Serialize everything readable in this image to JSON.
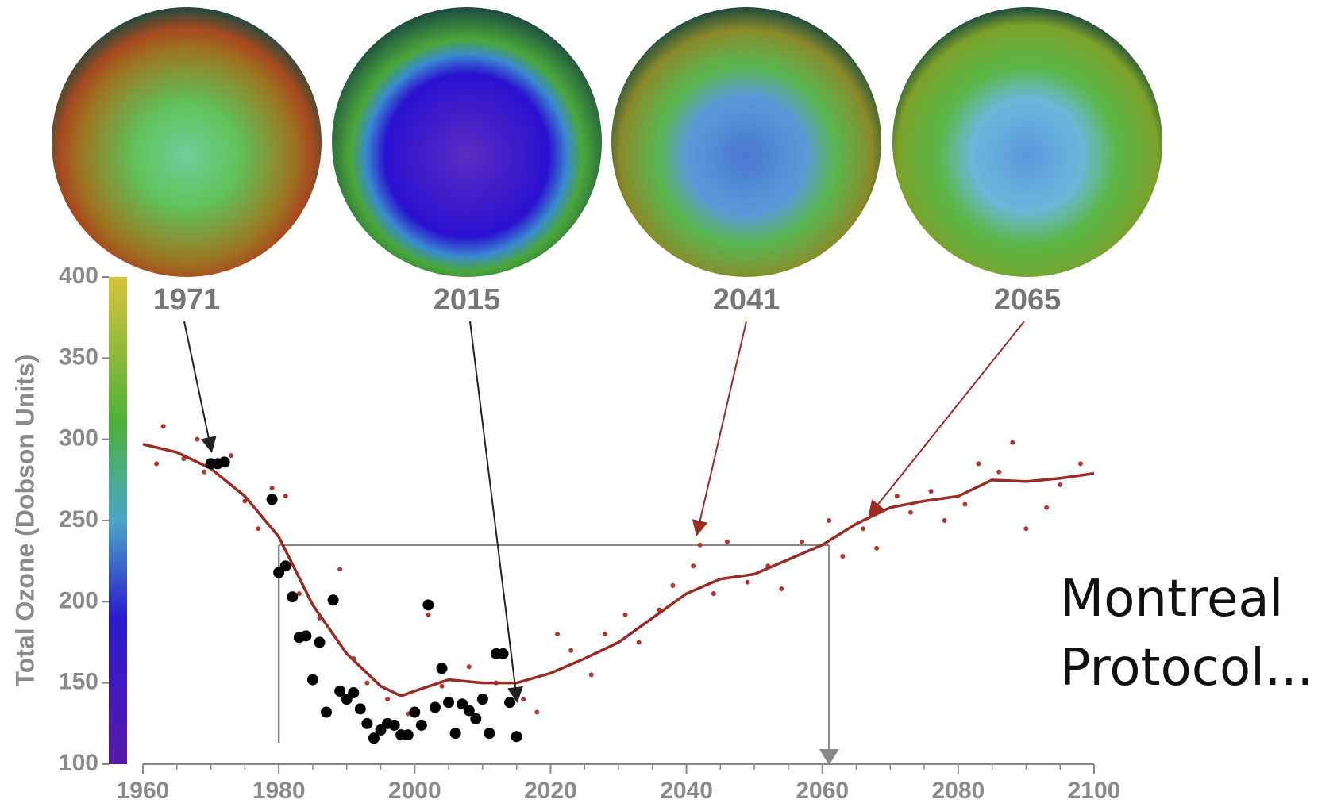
{
  "chart_data": {
    "type": "scatter",
    "y_label": "Total Ozone (Dobson Units)",
    "xlim": [
      1960,
      2100
    ],
    "xticks": [
      1960,
      1980,
      2000,
      2020,
      2040,
      2060,
      2080,
      2100
    ],
    "ylim": [
      100,
      400
    ],
    "yticks": [
      100,
      150,
      200,
      250,
      300,
      350,
      400
    ],
    "annotations": [
      "1971",
      "2015",
      "2041",
      "2065"
    ],
    "side_text": [
      "Montreal",
      "Protocol..."
    ],
    "reference_level": 235,
    "reference_years": [
      1980,
      2061
    ],
    "series": [
      {
        "type": "line",
        "color": "#9b2a22",
        "x": [
          1960,
          1965,
          1970,
          1975,
          1980,
          1985,
          1990,
          1995,
          1998,
          2000,
          2005,
          2010,
          2015,
          2020,
          2025,
          2030,
          2035,
          2040,
          2045,
          2050,
          2055,
          2060,
          2065,
          2070,
          2075,
          2080,
          2085,
          2090,
          2095,
          2100
        ],
        "values": [
          297,
          292,
          282,
          265,
          240,
          198,
          168,
          148,
          142,
          145,
          152,
          150,
          150,
          156,
          165,
          175,
          190,
          205,
          214,
          217,
          226,
          235,
          248,
          258,
          262,
          265,
          275,
          274,
          276,
          279
        ]
      },
      {
        "type": "scatter",
        "color": "#b3362c",
        "size": 3,
        "x": [
          1962,
          1963,
          1966,
          1968,
          1969,
          1973,
          1975,
          1977,
          1979,
          1981,
          1983,
          1986,
          1989,
          1991,
          1993,
          1996,
          1999,
          2002,
          2004,
          2008,
          2012,
          2016,
          2018,
          2021,
          2023,
          2026,
          2028,
          2031,
          2033,
          2036,
          2038,
          2041,
          2042,
          2044,
          2046,
          2049,
          2052,
          2054,
          2057,
          2061,
          2063,
          2066,
          2068,
          2071,
          2073,
          2076,
          2078,
          2081,
          2083,
          2086,
          2088,
          2090,
          2093,
          2095,
          2098
        ],
        "values": [
          285,
          308,
          288,
          300,
          280,
          290,
          262,
          245,
          270,
          265,
          205,
          190,
          220,
          165,
          150,
          140,
          131,
          192,
          148,
          160,
          150,
          140,
          132,
          180,
          170,
          155,
          180,
          192,
          175,
          195,
          210,
          222,
          235,
          205,
          237,
          212,
          222,
          208,
          237,
          250,
          228,
          245,
          233,
          265,
          255,
          268,
          250,
          260,
          285,
          280,
          298,
          245,
          258,
          272,
          285
        ]
      },
      {
        "type": "scatter",
        "color": "#000000",
        "size": 7,
        "x": [
          1970,
          1971,
          1972,
          1979,
          1980,
          1981,
          1982,
          1983,
          1984,
          1985,
          1986,
          1987,
          1988,
          1989,
          1990,
          1991,
          1992,
          1993,
          1994,
          1995,
          1996,
          1997,
          1998,
          1999,
          2000,
          2001,
          2002,
          2003,
          2004,
          2005,
          2006,
          2007,
          2008,
          2009,
          2010,
          2011,
          2012,
          2013,
          2014,
          2015
        ],
        "values": [
          285,
          285,
          286,
          263,
          218,
          222,
          203,
          178,
          179,
          152,
          175,
          132,
          201,
          145,
          140,
          144,
          134,
          125,
          116,
          121,
          125,
          124,
          118,
          118,
          132,
          124,
          198,
          135,
          159,
          138,
          119,
          137,
          133,
          128,
          140,
          119,
          168,
          168,
          138,
          117
        ]
      }
    ]
  }
}
